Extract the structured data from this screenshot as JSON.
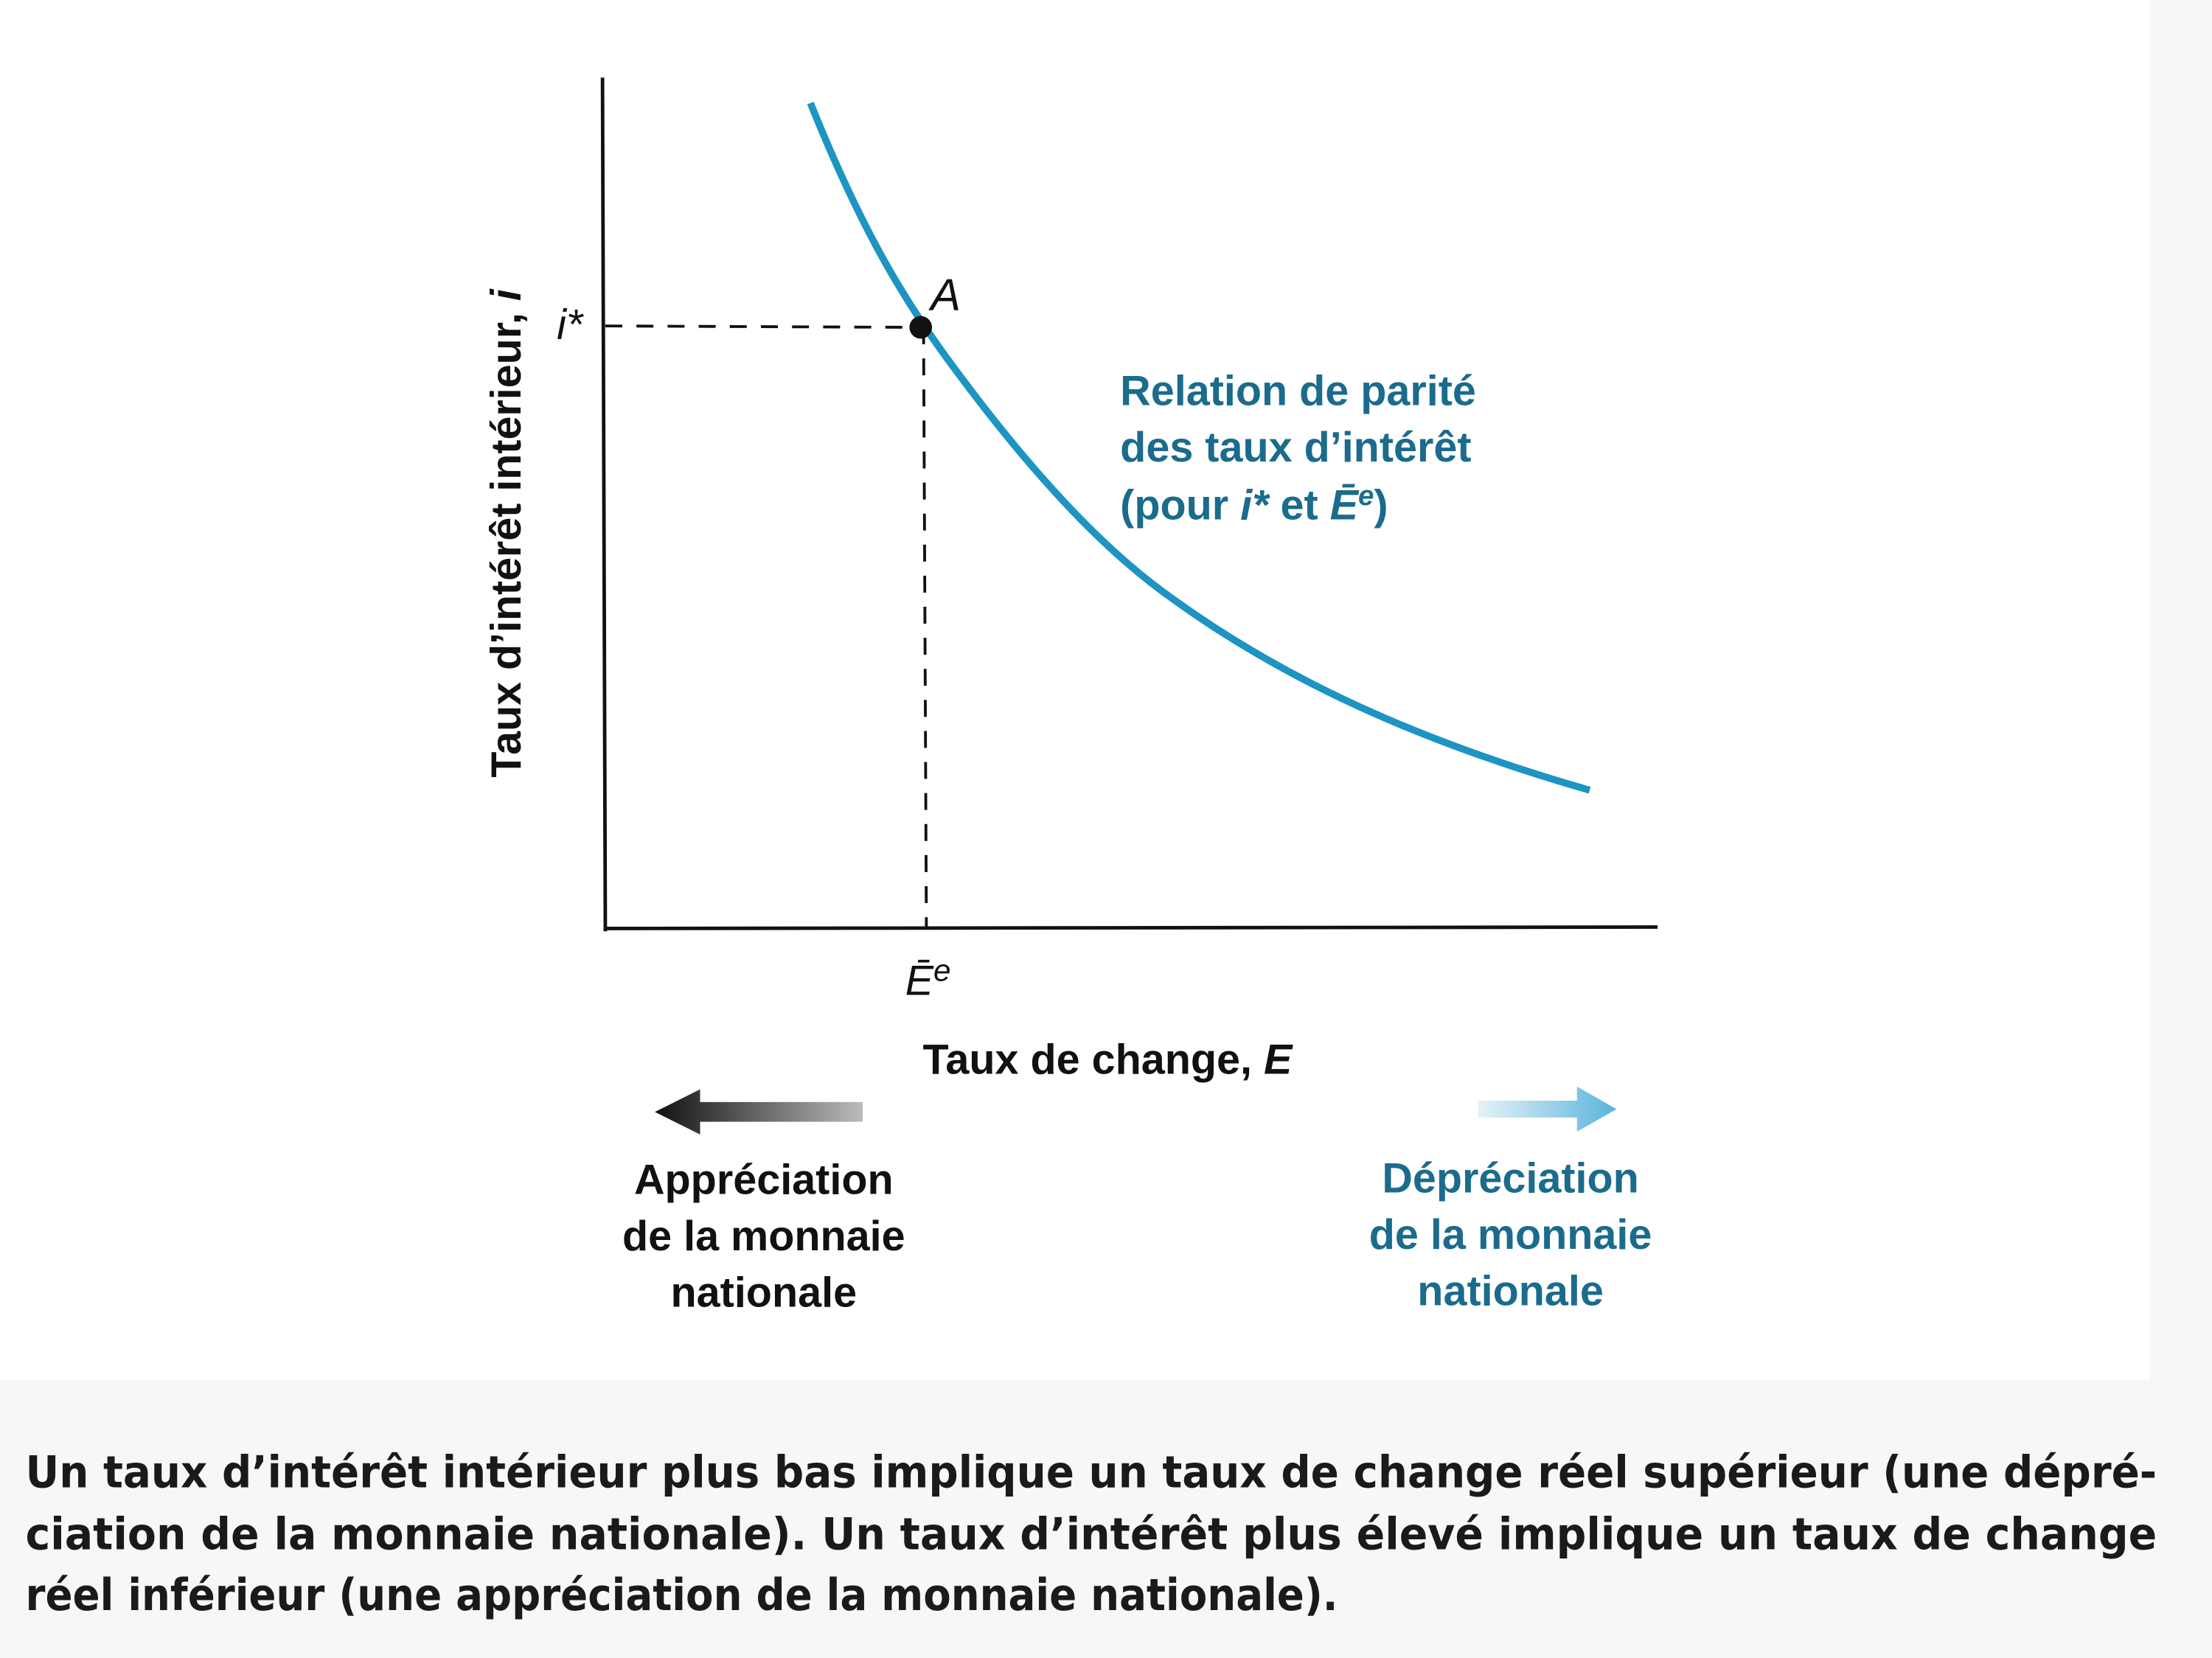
{
  "figure": {
    "y_axis_label": [
      "Taux d’intérêt intérieur, ",
      "i"
    ],
    "x_axis_label": [
      "Taux de change, ",
      "E"
    ],
    "y_point_label": "i*",
    "x_point_label": [
      "Ē",
      "e"
    ],
    "point_label": "A",
    "curve_label": {
      "lines": [
        "Relation de parité",
        "des taux d’intérêt"
      ],
      "line3": [
        "(pour ",
        "i*",
        " et ",
        "Ē",
        "e",
        ")"
      ]
    },
    "left_arrow_label": [
      "Appréciation",
      "de la monnaie",
      "nationale"
    ],
    "right_arrow_label": [
      "Dépréciation",
      "de la monnaie",
      "nationale"
    ]
  },
  "caption": {
    "lines": [
      "Un taux d’intérêt intérieur plus bas implique un taux de change réel supérieur (une dépré-",
      "ciation de la monnaie nationale). Un taux d’intérêt plus élevé implique un taux de change",
      "réel inférieur (une appréciation de la monnaie nationale)."
    ]
  }
}
